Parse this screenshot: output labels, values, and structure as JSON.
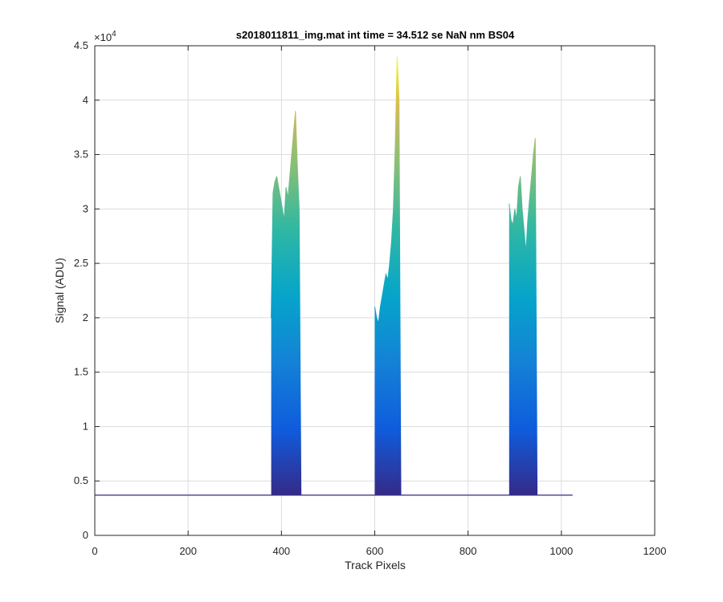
{
  "chart_data": {
    "type": "area",
    "title": "s2018011811_img.mat int time = 34.512 se  NaN nm BS04",
    "xlabel": "Track Pixels",
    "ylabel": "Signal (ADU)",
    "xlim": [
      0,
      1200
    ],
    "ylim": [
      0,
      45000
    ],
    "y_exponent_label": "×10",
    "y_exponent_power": "4",
    "x_ticks": [
      0,
      200,
      400,
      600,
      800,
      1000,
      1200
    ],
    "x_tick_labels": [
      "0",
      "200",
      "400",
      "600",
      "800",
      "1000",
      "1200"
    ],
    "y_ticks": [
      0,
      5000,
      10000,
      15000,
      20000,
      25000,
      30000,
      35000,
      40000,
      45000
    ],
    "y_tick_labels": [
      "0",
      "0.5",
      "1",
      "1.5",
      "2",
      "2.5",
      "3",
      "3.5",
      "4",
      "4.5"
    ],
    "grid": true,
    "colormap": "parula",
    "baseline": 3700,
    "data_x_range": [
      0,
      1024
    ],
    "series": [
      {
        "x": [
          378,
          382,
          386,
          390,
          394,
          398,
          402,
          406,
          410,
          414,
          418,
          422,
          426,
          430,
          434,
          438,
          442
        ],
        "values": [
          20000,
          31500,
          32500,
          33000,
          32000,
          31000,
          30000,
          29000,
          32000,
          31000,
          33000,
          35000,
          37000,
          39000,
          34000,
          30000,
          3700
        ]
      },
      {
        "x": [
          600,
          604,
          608,
          612,
          616,
          620,
          624,
          628,
          632,
          636,
          640,
          644,
          648,
          652,
          656
        ],
        "values": [
          21000,
          20000,
          19500,
          21000,
          22000,
          23000,
          24000,
          23500,
          25000,
          27000,
          30000,
          36000,
          44000,
          40000,
          3700
        ]
      },
      {
        "x": [
          888,
          892,
          896,
          900,
          904,
          908,
          912,
          916,
          920,
          924,
          928,
          932,
          936,
          940,
          944,
          948
        ],
        "values": [
          30500,
          29000,
          28500,
          30000,
          29000,
          32000,
          33000,
          30000,
          28000,
          26000,
          29000,
          31000,
          33000,
          35000,
          36500,
          3700
        ]
      }
    ]
  }
}
